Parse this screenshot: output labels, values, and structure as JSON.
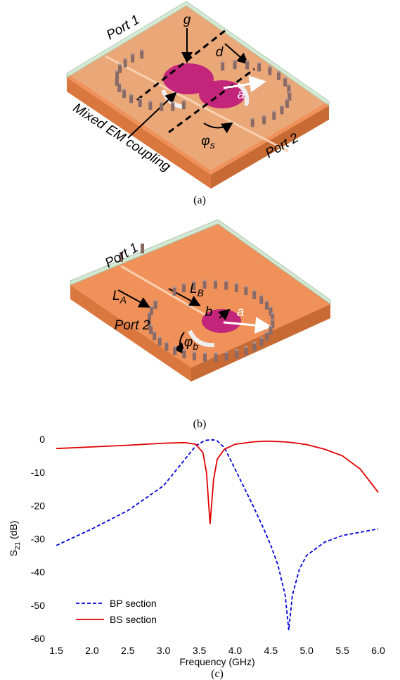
{
  "figure_a": {
    "caption": "(a)",
    "port1": "Port 1",
    "port2": "Port 2",
    "g": "g",
    "d": "d",
    "a": "a",
    "coupling": "Mixed EM coupling",
    "phi": {
      "symbol": "φ",
      "subscript": "s"
    }
  },
  "figure_b": {
    "caption": "(b)",
    "port1": "Port 1",
    "port2": "Port 2",
    "LA": {
      "symbol": "L",
      "subscript": "A"
    },
    "LB": {
      "symbol": "L",
      "subscript": "B"
    },
    "b": "b",
    "a": "a",
    "phi": {
      "symbol": "φ",
      "subscript": "b"
    }
  },
  "chart_data": {
    "type": "line",
    "caption": "(c)",
    "xlabel": "Frequency (GHz)",
    "ylabel": {
      "base": "S",
      "subscript": "21",
      "unit": "(dB)"
    },
    "x": [
      1.5,
      2.0,
      2.5,
      3.0,
      3.3,
      3.45,
      3.55,
      3.6,
      3.65,
      3.7,
      3.75,
      3.85,
      4.0,
      4.25,
      4.4,
      4.5,
      4.6,
      4.7,
      4.75,
      4.8,
      4.9,
      5.0,
      5.25,
      5.5,
      5.75,
      6.0
    ],
    "series": [
      {
        "name": "BP section",
        "color": "#0000e0",
        "dash": true,
        "values": [
          -32,
          -27,
          -21.5,
          -14,
          -6,
          -2,
          -0.7,
          -0.3,
          -0.2,
          -0.2,
          -0.5,
          -2.5,
          -9,
          -20,
          -27,
          -32,
          -38,
          -47,
          -57.5,
          -47,
          -39,
          -35,
          -31,
          -29,
          -28,
          -27
        ]
      },
      {
        "name": "BS section",
        "color": "#e00000",
        "dash": false,
        "values": [
          -2.8,
          -2.3,
          -1.8,
          -1.2,
          -1,
          -1.5,
          -4,
          -10,
          -25.5,
          -12,
          -6,
          -3,
          -1.5,
          -0.8,
          -0.6,
          -0.6,
          -0.7,
          -0.8,
          -0.9,
          -1,
          -1.3,
          -1.6,
          -3,
          -5,
          -9,
          -16
        ]
      }
    ],
    "xlim": [
      1.5,
      6.0
    ],
    "ylim": [
      -60,
      0
    ],
    "xticks": [
      1.5,
      {
        "value": 2,
        "label": "2.0"
      },
      2.5,
      {
        "value": 3,
        "label": "3.0"
      },
      3.5,
      {
        "value": 4,
        "label": "4.0"
      },
      4.5,
      {
        "value": 5,
        "label": "5.0"
      },
      5.5,
      {
        "value": 6,
        "label": "6.0"
      }
    ],
    "yticks": [
      0,
      -10,
      -20,
      -30,
      -40,
      -50,
      -60
    ],
    "grid": false,
    "legend": "lower left"
  }
}
